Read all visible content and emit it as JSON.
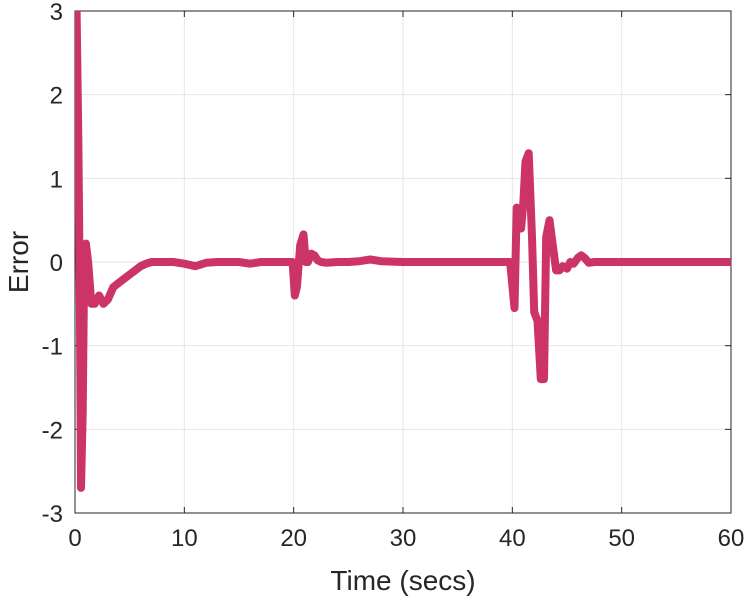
{
  "chart_data": {
    "type": "line",
    "title": "",
    "xlabel": "Time (secs)",
    "ylabel": "Error",
    "xlim": [
      0,
      60
    ],
    "ylim": [
      -3,
      3
    ],
    "xticks": [
      0,
      10,
      20,
      30,
      40,
      50,
      60
    ],
    "yticks": [
      -3,
      -2,
      -1,
      0,
      1,
      2,
      3
    ],
    "grid": true,
    "line_color": "#cc3366",
    "series": [
      {
        "name": "",
        "x": [
          0,
          0.15,
          0.3,
          0.45,
          0.55,
          0.7,
          0.85,
          1.0,
          1.2,
          1.5,
          1.8,
          2.2,
          2.6,
          3.0,
          3.5,
          4.0,
          4.5,
          5.0,
          5.5,
          6.0,
          6.5,
          7.0,
          8.0,
          9.0,
          10.0,
          11.0,
          12.0,
          13.0,
          14.0,
          15.0,
          16.0,
          17.0,
          18.0,
          19.0,
          19.9,
          20.1,
          20.3,
          20.6,
          20.9,
          21.1,
          21.3,
          21.6,
          21.9,
          22.2,
          22.5,
          23.0,
          24.0,
          25.0,
          26.0,
          27.0,
          28.0,
          30.0,
          35.0,
          39.8,
          40.2,
          40.4,
          40.6,
          40.8,
          41.0,
          41.2,
          41.5,
          41.8,
          42.0,
          42.3,
          42.6,
          42.9,
          43.1,
          43.4,
          43.7,
          44.0,
          44.3,
          44.6,
          45.0,
          45.3,
          45.6,
          46.0,
          46.3,
          46.6,
          47.0,
          47.5,
          48.0,
          50.0,
          55.0,
          60.0
        ],
        "y": [
          3.0,
          3.0,
          1.5,
          -0.5,
          -2.7,
          -1.8,
          0.1,
          0.22,
          0.0,
          -0.5,
          -0.5,
          -0.4,
          -0.5,
          -0.45,
          -0.3,
          -0.25,
          -0.2,
          -0.15,
          -0.1,
          -0.05,
          -0.02,
          0.0,
          0.0,
          0.0,
          -0.02,
          -0.05,
          -0.01,
          0.0,
          0.0,
          0.0,
          -0.02,
          0.0,
          0.0,
          0.0,
          0.0,
          -0.4,
          -0.3,
          0.2,
          0.33,
          0.0,
          0.0,
          0.1,
          0.08,
          0.02,
          0.0,
          -0.01,
          0.0,
          0.0,
          0.01,
          0.03,
          0.01,
          0.0,
          0.0,
          0.0,
          -0.55,
          0.65,
          0.5,
          0.4,
          0.7,
          1.2,
          1.3,
          0.3,
          -0.6,
          -0.7,
          -1.4,
          -1.4,
          0.3,
          0.5,
          0.2,
          -0.1,
          -0.1,
          -0.05,
          -0.08,
          0.0,
          -0.02,
          0.05,
          0.08,
          0.05,
          -0.01,
          0.0,
          0.0,
          0.0,
          0.0,
          0.0
        ]
      }
    ]
  }
}
